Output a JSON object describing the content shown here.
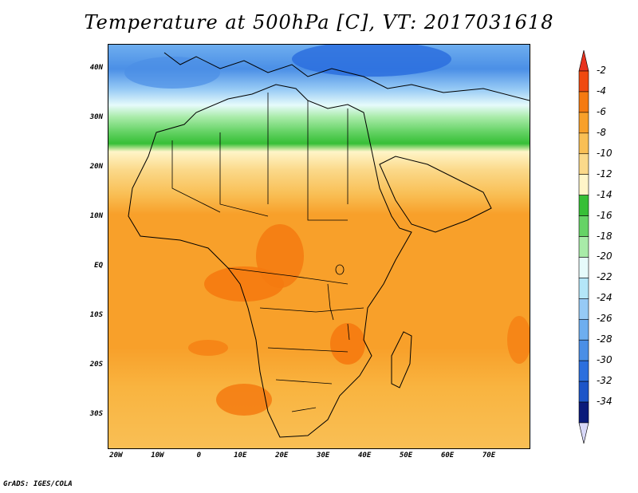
{
  "title": "Temperature at 500hPa [C], VT: 2017031618",
  "credit": "GrADS: IGES/COLA",
  "colors": {
    "background": "#ffffff",
    "land_border": "#000000"
  },
  "map": {
    "lon_range": [
      -22,
      80
    ],
    "lat_range": [
      -37,
      45
    ],
    "lat_ticks": [
      {
        "lat": 40,
        "label": "40N"
      },
      {
        "lat": 30,
        "label": "30N"
      },
      {
        "lat": 20,
        "label": "20N"
      },
      {
        "lat": 10,
        "label": "10N"
      },
      {
        "lat": 0,
        "label": "EQ"
      },
      {
        "lat": -10,
        "label": "10S"
      },
      {
        "lat": -20,
        "label": "20S"
      },
      {
        "lat": -30,
        "label": "30S"
      }
    ],
    "lon_ticks": [
      {
        "lon": -20,
        "label": "20W"
      },
      {
        "lon": -10,
        "label": "10W"
      },
      {
        "lon": 0,
        "label": "0"
      },
      {
        "lon": 10,
        "label": "10E"
      },
      {
        "lon": 20,
        "label": "20E"
      },
      {
        "lon": 30,
        "label": "30E"
      },
      {
        "lon": 40,
        "label": "40E"
      },
      {
        "lon": 50,
        "label": "50E"
      },
      {
        "lon": 60,
        "label": "60E"
      },
      {
        "lon": 70,
        "label": "70E"
      }
    ]
  },
  "colorbar": {
    "labels": [
      "-2",
      "-4",
      "-6",
      "-8",
      "-10",
      "-12",
      "-14",
      "-16",
      "-18",
      "-20",
      "-22",
      "-24",
      "-26",
      "-28",
      "-30",
      "-32",
      "-34"
    ],
    "colors": [
      "#f04a10",
      "#f57a10",
      "#f8a02a",
      "#f9bf55",
      "#fbd98a",
      "#fff5c8",
      "#36bf36",
      "#66d366",
      "#a8eba8",
      "#e6fbfb",
      "#b4e6f8",
      "#96caf5",
      "#6eaeef",
      "#4b8fe6",
      "#2c6fde",
      "#1d55c8",
      "#0a1a7a"
    ],
    "top_arrow_color": "#e8321e",
    "bottom_arrow_color": "#d8d8f8"
  }
}
